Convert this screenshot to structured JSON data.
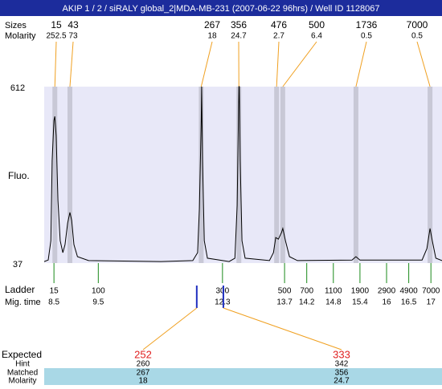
{
  "title": "AKIP 1 / 2 / siRALY global_2|MDA-MB-231 (2007-06-22 96hrs) / Well ID 1128067",
  "labels": {
    "sizes": "Sizes",
    "molarity": "Molarity",
    "fluo": "Fluo.",
    "ladder": "Ladder",
    "mig_time": "Mig. time",
    "expected": "Expected",
    "hint": "Hint",
    "matched": "Matched",
    "molarity_bottom": "Molarity"
  },
  "chart_data": {
    "type": "electropherogram",
    "xlim": [
      8.28,
      17.25
    ],
    "ylim": [
      37,
      612
    ],
    "yticks": [
      37,
      612
    ],
    "peaks": [
      {
        "size": 15,
        "molarity": 252.5,
        "time": 8.52
      },
      {
        "size": 43,
        "molarity": 73,
        "time": 8.86
      },
      {
        "size": 267,
        "molarity": 18,
        "time": 11.82
      },
      {
        "size": 356,
        "molarity": 24.7,
        "time": 12.67
      },
      {
        "size": 476,
        "molarity": 2.7,
        "time": 13.52
      },
      {
        "size": 500,
        "molarity": 6.4,
        "time": 13.66
      },
      {
        "size": 1736,
        "molarity": 0.5,
        "time": 15.31
      },
      {
        "size": 7000,
        "molarity": 0.5,
        "time": 16.98
      }
    ],
    "ladder": [
      {
        "size": 15,
        "time": 8.5
      },
      {
        "size": 100,
        "time": 9.5
      },
      {
        "size": 300,
        "time": 12.3
      },
      {
        "size": 500,
        "time": 13.7
      },
      {
        "size": 700,
        "time": 14.2
      },
      {
        "size": 1100,
        "time": 14.8
      },
      {
        "size": 1900,
        "time": 15.4
      },
      {
        "size": 2900,
        "time": 16
      },
      {
        "size": 4900,
        "time": 16.5
      },
      {
        "size": 7000,
        "time": 17
      }
    ],
    "trace": {
      "x": [
        8.28,
        8.37,
        8.43,
        8.46,
        8.5,
        8.52,
        8.55,
        8.59,
        8.64,
        8.7,
        8.75,
        8.81,
        8.86,
        8.9,
        8.95,
        9.03,
        9.28,
        10.91,
        11.63,
        11.74,
        11.78,
        11.82,
        11.83,
        11.85,
        11.89,
        11.96,
        12.45,
        12.58,
        12.63,
        12.67,
        12.68,
        12.7,
        12.74,
        12.81,
        13.36,
        13.45,
        13.5,
        13.56,
        13.63,
        13.66,
        13.72,
        13.81,
        13.99,
        15.22,
        15.31,
        15.4,
        16.8,
        16.91,
        16.98,
        17.03,
        17.11,
        17.25
      ],
      "y": [
        42,
        47,
        110,
        371,
        502,
        515,
        452,
        241,
        110,
        71,
        97,
        168,
        202,
        176,
        97,
        58,
        45,
        42,
        45,
        71,
        214,
        502,
        612,
        371,
        110,
        53,
        42,
        53,
        225,
        612,
        612,
        371,
        110,
        53,
        45,
        71,
        120,
        115,
        136,
        150,
        110,
        58,
        45,
        47,
        58,
        47,
        47,
        84,
        150,
        110,
        53,
        45
      ]
    },
    "expected": [
      {
        "expected": 252,
        "hint": 260,
        "matched": 267,
        "molarity": 18,
        "time": 11.72
      },
      {
        "expected": 333,
        "hint": 342,
        "matched": 356,
        "molarity": 24.7,
        "time": 12.32
      }
    ]
  }
}
